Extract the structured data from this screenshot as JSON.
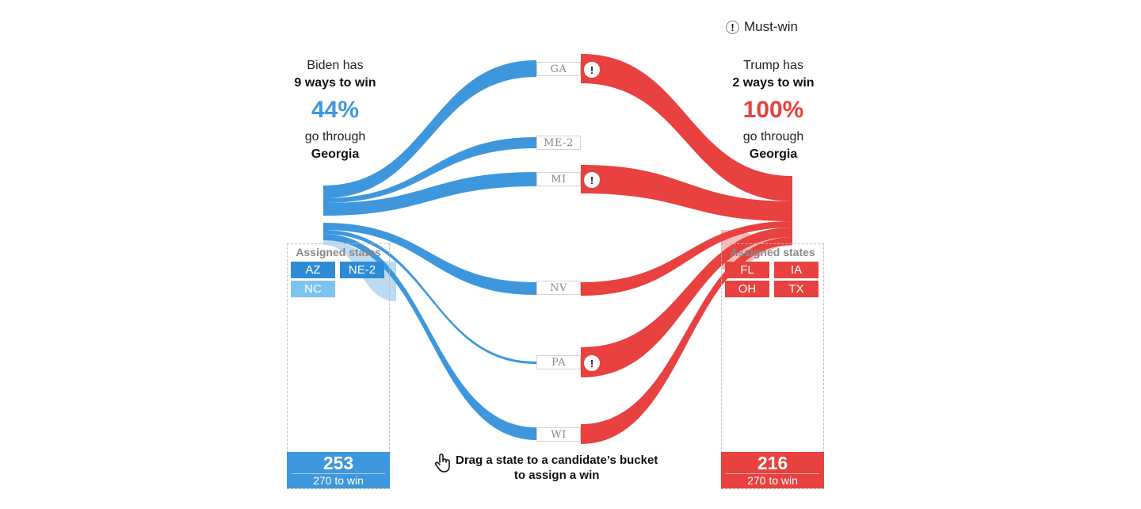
{
  "legend": {
    "icon": "exclamation-circle-icon",
    "label": "Must-win"
  },
  "biden": {
    "line1": "Biden has",
    "line2": "9 ways to win",
    "percent": "44%",
    "line3": "go through",
    "line4": "Georgia",
    "color": "#3e97dc",
    "bucket_title": "Assigned states",
    "assigned": [
      "AZ",
      "NE-2",
      "NC"
    ],
    "total": "253",
    "total_sub": "270 to win"
  },
  "trump": {
    "line1": "Trump has",
    "line2": "2 ways to win",
    "percent": "100%",
    "line3": "go through",
    "line4": "Georgia",
    "color": "#e8413f",
    "bucket_title": "Assigned states",
    "assigned": [
      "FL",
      "IA",
      "OH",
      "TX"
    ],
    "total": "216",
    "total_sub": "270 to win"
  },
  "states": [
    {
      "label": "GA",
      "must_win_trump": true
    },
    {
      "label": "ME-2",
      "must_win_trump": false
    },
    {
      "label": "MI",
      "must_win_trump": true
    },
    {
      "label": "NV",
      "must_win_trump": false
    },
    {
      "label": "PA",
      "must_win_trump": true
    },
    {
      "label": "WI",
      "must_win_trump": false
    }
  ],
  "hint": {
    "line1": "Drag a state to a candidate’s bucket",
    "line2": "to assign a win",
    "icon": "hand-pointer-icon"
  }
}
